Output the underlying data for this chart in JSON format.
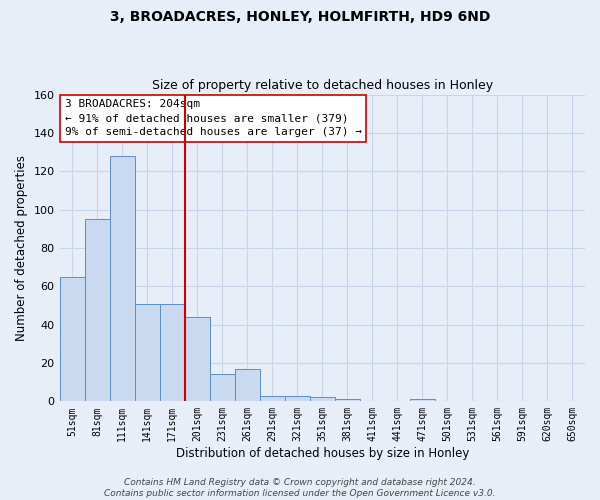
{
  "title": "3, BROADACRES, HONLEY, HOLMFIRTH, HD9 6ND",
  "subtitle": "Size of property relative to detached houses in Honley",
  "xlabel": "Distribution of detached houses by size in Honley",
  "ylabel": "Number of detached properties",
  "bar_labels": [
    "51sqm",
    "81sqm",
    "111sqm",
    "141sqm",
    "171sqm",
    "201sqm",
    "231sqm",
    "261sqm",
    "291sqm",
    "321sqm",
    "351sqm",
    "381sqm",
    "411sqm",
    "441sqm",
    "471sqm",
    "501sqm",
    "531sqm",
    "561sqm",
    "591sqm",
    "620sqm",
    "650sqm"
  ],
  "bar_values": [
    65,
    95,
    128,
    51,
    51,
    44,
    14,
    17,
    3,
    3,
    2,
    1,
    0,
    0,
    1,
    0,
    0,
    0,
    0,
    0,
    0
  ],
  "bar_color": "#c9d9f0",
  "bar_edgecolor": "#5a8fc2",
  "grid_color": "#c8d4e8",
  "bg_color": "#e8eef8",
  "vline_color": "#cc0000",
  "annotation_text": "3 BROADACRES: 204sqm\n← 91% of detached houses are smaller (379)\n9% of semi-detached houses are larger (37) →",
  "annotation_box_facecolor": "#ffffff",
  "annotation_box_edgecolor": "#cc0000",
  "ylim": [
    0,
    160
  ],
  "yticks": [
    0,
    20,
    40,
    60,
    80,
    100,
    120,
    140,
    160
  ],
  "footer": "Contains HM Land Registry data © Crown copyright and database right 2024.\nContains public sector information licensed under the Open Government Licence v3.0."
}
